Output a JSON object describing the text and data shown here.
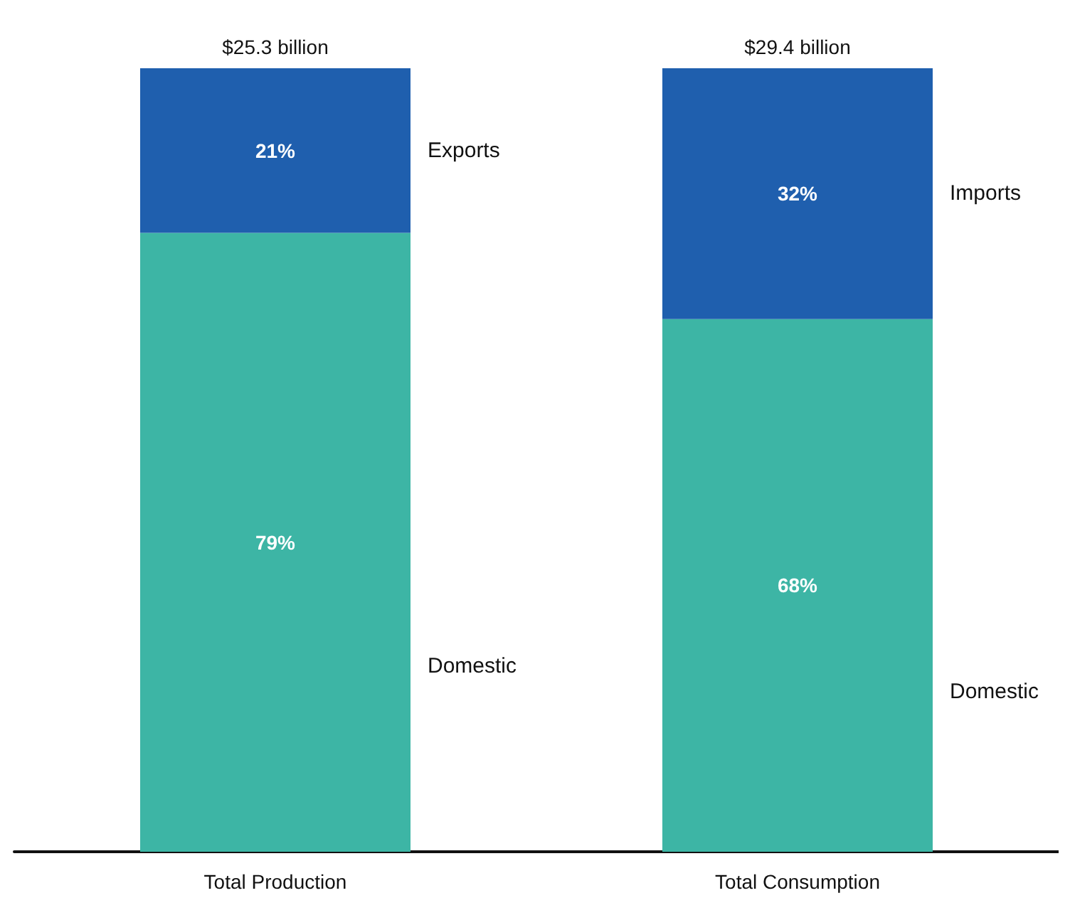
{
  "chart_data": {
    "type": "bar",
    "stacked": true,
    "categories": [
      "Total Production",
      "Total Consumption"
    ],
    "series": [
      {
        "name": "Domestic",
        "color": "#3db5a5",
        "values": [
          79,
          68
        ],
        "value_labels": [
          "79%",
          "68%"
        ]
      },
      {
        "name": "Exports",
        "color": "#1f5fae",
        "values": [
          21,
          null
        ],
        "value_labels": [
          "21%",
          null
        ]
      },
      {
        "name": "Imports",
        "color": "#1f5fae",
        "values": [
          null,
          32
        ],
        "value_labels": [
          null,
          "32%"
        ]
      }
    ],
    "annotations": [
      {
        "text": "$25.3 billion",
        "x": "Total Production",
        "y": 100
      },
      {
        "text": "$29.4 billion",
        "x": "Total Consumption",
        "y": 100
      }
    ],
    "legend": false,
    "grid": false
  }
}
